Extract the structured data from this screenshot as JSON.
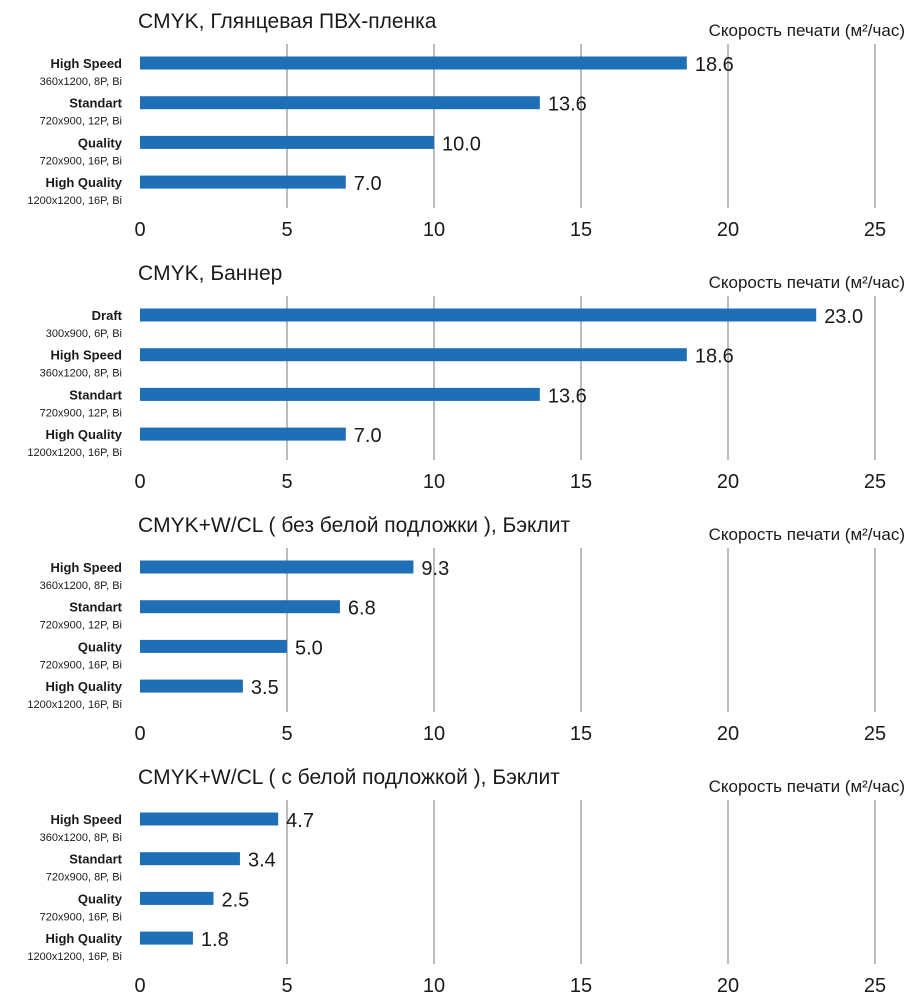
{
  "colors": {
    "bar": "#1f6fb6",
    "grid": "#a6a6a6",
    "text": "#1a1a1a"
  },
  "chart_data": [
    {
      "type": "bar",
      "orientation": "horizontal",
      "title": "CMYK, Глянцевая ПВХ-пленка",
      "xlabel": "Скорость печати (м²/час)",
      "xlim": [
        0,
        25
      ],
      "xticks": [
        0,
        5,
        10,
        15,
        20,
        25
      ],
      "grid": true,
      "categories": [
        {
          "name": "High Speed",
          "detail": "360x1200, 8P, Bi"
        },
        {
          "name": "Standart",
          "detail": "720x900, 12P, Bi"
        },
        {
          "name": "Quality",
          "detail": "720x900, 16P, Bi"
        },
        {
          "name": "High Quality",
          "detail": "1200x1200, 16P, Bi"
        }
      ],
      "values": [
        18.6,
        13.6,
        10.0,
        7.0
      ],
      "value_labels": [
        "18.6",
        "13.6",
        "10.0",
        "7.0"
      ]
    },
    {
      "type": "bar",
      "orientation": "horizontal",
      "title": "CMYK, Баннер",
      "xlabel": "Скорость печати (м²/час)",
      "xlim": [
        0,
        25
      ],
      "xticks": [
        0,
        5,
        10,
        15,
        20,
        25
      ],
      "grid": true,
      "categories": [
        {
          "name": "Draft",
          "detail": "300x900, 6P, Bi"
        },
        {
          "name": "High Speed",
          "detail": "360x1200, 8P, Bi"
        },
        {
          "name": "Standart",
          "detail": "720x900, 12P, Bi"
        },
        {
          "name": "High Quality",
          "detail": "1200x1200, 16P, Bi"
        }
      ],
      "values": [
        23.0,
        18.6,
        13.6,
        7.0
      ],
      "value_labels": [
        "23.0",
        "18.6",
        "13.6",
        "7.0"
      ]
    },
    {
      "type": "bar",
      "orientation": "horizontal",
      "title": "CMYK+W/CL ( без белой подложки ), Бэклит",
      "xlabel": "Скорость печати (м²/час)",
      "xlim": [
        0,
        25
      ],
      "xticks": [
        0,
        5,
        10,
        15,
        20,
        25
      ],
      "grid": true,
      "categories": [
        {
          "name": "High Speed",
          "detail": "360x1200, 8P, Bi"
        },
        {
          "name": "Standart",
          "detail": "720x900, 12P, Bi"
        },
        {
          "name": "Quality",
          "detail": "720x900, 16P, Bi"
        },
        {
          "name": "High Quality",
          "detail": "1200x1200, 16P, Bi"
        }
      ],
      "values": [
        9.3,
        6.8,
        5.0,
        3.5
      ],
      "value_labels": [
        "9.3",
        "6.8",
        "5.0",
        "3.5"
      ]
    },
    {
      "type": "bar",
      "orientation": "horizontal",
      "title": "CMYK+W/CL ( с белой подложкой ), Бэклит",
      "xlabel": "Скорость печати (м²/час)",
      "xlim": [
        0,
        25
      ],
      "xticks": [
        0,
        5,
        10,
        15,
        20,
        25
      ],
      "grid": true,
      "categories": [
        {
          "name": "High Speed",
          "detail": "360x1200, 8P, Bi"
        },
        {
          "name": "Standart",
          "detail": "720x900, 8P, Bi"
        },
        {
          "name": "Quality",
          "detail": "720x900, 16P, Bi"
        },
        {
          "name": "High Quality",
          "detail": "1200x1200, 16P, Bi"
        }
      ],
      "values": [
        4.7,
        3.4,
        2.5,
        1.8
      ],
      "value_labels": [
        "4.7",
        "3.4",
        "2.5",
        "1.8"
      ]
    }
  ]
}
